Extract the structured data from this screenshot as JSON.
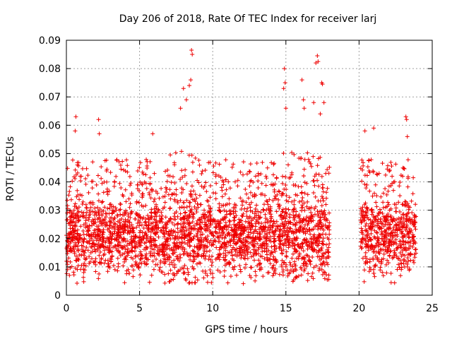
{
  "chart_data": {
    "type": "scatter",
    "title": "Day 206 of 2018, Rate Of TEC Index for receiver larj",
    "xlabel": "GPS time / hours",
    "ylabel": "ROTI / TECUs",
    "xlim": [
      0,
      25
    ],
    "ylim": [
      0,
      0.09
    ],
    "x_ticks": [
      0,
      5,
      10,
      15,
      20,
      25
    ],
    "x_tick_labels": [
      "0",
      "5",
      "10",
      "15",
      "20",
      "25"
    ],
    "y_ticks": [
      0,
      0.01,
      0.02,
      0.03,
      0.04,
      0.05,
      0.06,
      0.07,
      0.08,
      0.09
    ],
    "y_tick_labels": [
      "0",
      "0.01",
      "0.02",
      "0.03",
      "0.04",
      "0.05",
      "0.06",
      "0.07",
      "0.08",
      "0.09"
    ],
    "grid": true,
    "marker": "+",
    "color": "#ee0000",
    "observation_windows": [
      {
        "start": 0.0,
        "end": 18.0
      },
      {
        "start": 20.1,
        "end": 23.9
      }
    ],
    "typical_range": [
      0.008,
      0.035
    ],
    "notable_points": [
      {
        "x": 0.65,
        "y": 0.063
      },
      {
        "x": 0.6,
        "y": 0.058
      },
      {
        "x": 2.2,
        "y": 0.062
      },
      {
        "x": 2.25,
        "y": 0.057
      },
      {
        "x": 5.9,
        "y": 0.057
      },
      {
        "x": 7.8,
        "y": 0.066
      },
      {
        "x": 8.0,
        "y": 0.073
      },
      {
        "x": 8.2,
        "y": 0.069
      },
      {
        "x": 8.4,
        "y": 0.074
      },
      {
        "x": 8.55,
        "y": 0.0865
      },
      {
        "x": 8.6,
        "y": 0.085
      },
      {
        "x": 8.5,
        "y": 0.076
      },
      {
        "x": 14.9,
        "y": 0.08
      },
      {
        "x": 14.95,
        "y": 0.075
      },
      {
        "x": 14.85,
        "y": 0.073
      },
      {
        "x": 15.0,
        "y": 0.066
      },
      {
        "x": 16.1,
        "y": 0.076
      },
      {
        "x": 16.2,
        "y": 0.069
      },
      {
        "x": 16.25,
        "y": 0.066
      },
      {
        "x": 16.9,
        "y": 0.068
      },
      {
        "x": 17.15,
        "y": 0.0845
      },
      {
        "x": 17.2,
        "y": 0.0825
      },
      {
        "x": 17.05,
        "y": 0.082
      },
      {
        "x": 17.45,
        "y": 0.075
      },
      {
        "x": 17.5,
        "y": 0.0745
      },
      {
        "x": 17.35,
        "y": 0.064
      },
      {
        "x": 17.6,
        "y": 0.068
      },
      {
        "x": 21.0,
        "y": 0.059
      },
      {
        "x": 20.4,
        "y": 0.058
      },
      {
        "x": 23.2,
        "y": 0.063
      },
      {
        "x": 23.25,
        "y": 0.062
      },
      {
        "x": 23.3,
        "y": 0.056
      }
    ]
  }
}
